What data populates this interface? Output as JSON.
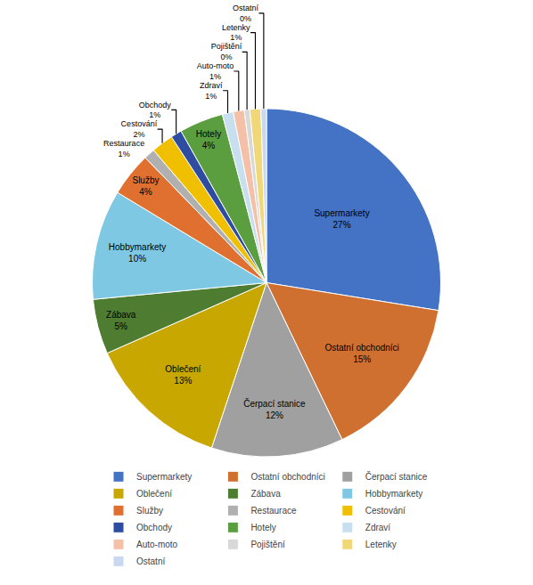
{
  "chart_data": {
    "type": "pie",
    "labels": [
      "Supermarkety",
      "Ostatní obchodníci",
      "Čerpací stanice",
      "Oblečení",
      "Zábava",
      "Hobbymarkety",
      "Služby",
      "Restaurace",
      "Cestování",
      "Obchody",
      "Hotely",
      "Zdraví",
      "Auto-moto",
      "Pojištění",
      "Letenky",
      "Ostatní"
    ],
    "values": [
      27,
      15,
      12,
      13,
      5,
      10,
      4,
      1,
      2,
      1,
      4,
      1,
      1,
      0.5,
      1,
      0.5
    ],
    "value_labels": [
      "27%",
      "15%",
      "12%",
      "13%",
      "5%",
      "10%",
      "4%",
      "1%",
      "2%",
      "1%",
      "4%",
      "1%",
      "1%",
      "0%",
      "1%",
      "0%"
    ],
    "colors": [
      "#4472C4",
      "#D07030",
      "#A0A0A0",
      "#C8A800",
      "#4E7C30",
      "#7EC8E3",
      "#E07030",
      "#B0B0B0",
      "#F0C000",
      "#2E4DA0",
      "#5A9E40",
      "#C8DFF0",
      "#F4C0A8",
      "#D8D8D8",
      "#F0D878",
      "#C8D8F0"
    ],
    "data_labels": true,
    "legend": "bottom"
  }
}
